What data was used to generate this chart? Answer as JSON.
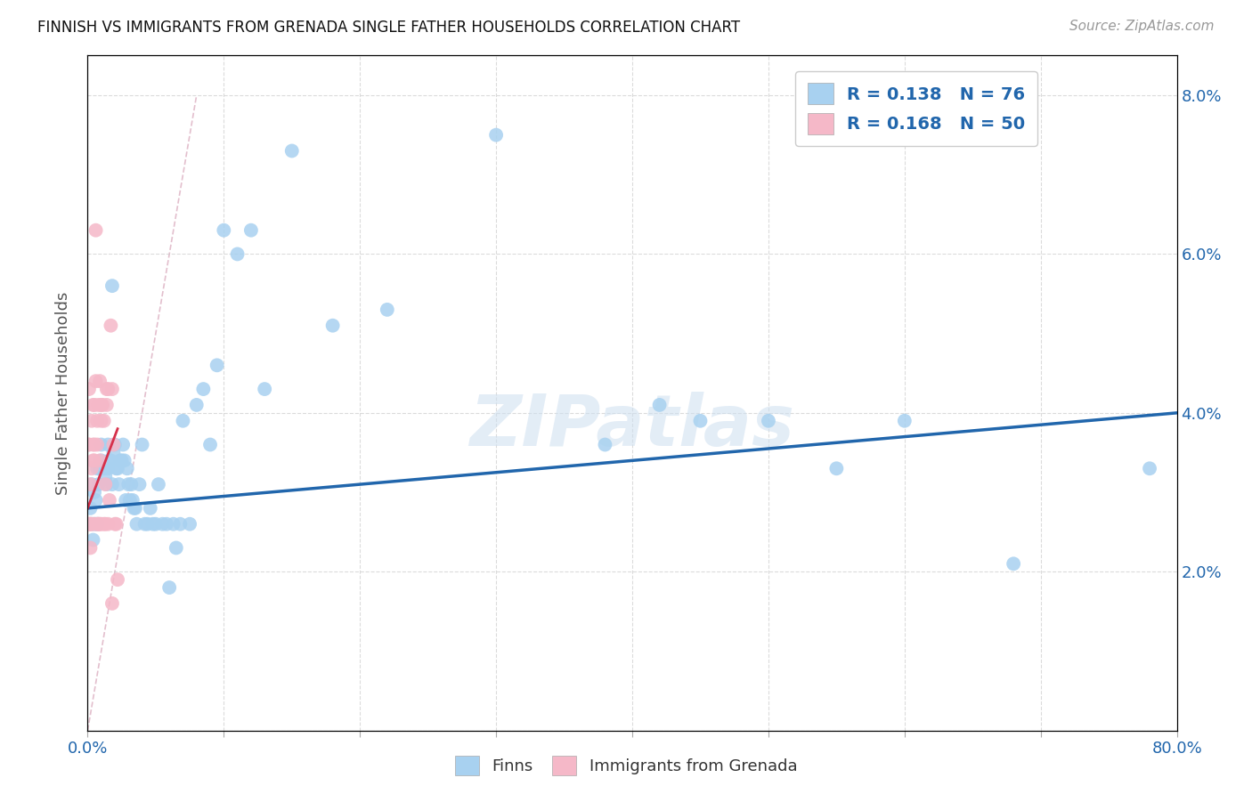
{
  "title": "FINNISH VS IMMIGRANTS FROM GRENADA SINGLE FATHER HOUSEHOLDS CORRELATION CHART",
  "source": "Source: ZipAtlas.com",
  "ylabel": "Single Father Households",
  "finns_R": 0.138,
  "finns_N": 76,
  "grenada_R": 0.168,
  "grenada_N": 50,
  "finns_color": "#a8d1f0",
  "grenada_color": "#f5b8c8",
  "finns_line_color": "#2166ac",
  "grenada_line_color": "#d6304a",
  "diagonal_color": "#e0b8c8",
  "legend_text_color": "#2166ac",
  "watermark_color": "#cddff0",
  "xlim": [
    0.0,
    0.8
  ],
  "ylim": [
    0.0,
    0.085
  ],
  "x_ticks": [
    0.0,
    0.1,
    0.2,
    0.3,
    0.4,
    0.5,
    0.6,
    0.7,
    0.8
  ],
  "y_ticks": [
    0.0,
    0.02,
    0.04,
    0.06,
    0.08
  ],
  "y_tick_labels": [
    "",
    "2.0%",
    "4.0%",
    "6.0%",
    "8.0%"
  ],
  "finns_x": [
    0.002,
    0.003,
    0.003,
    0.004,
    0.005,
    0.005,
    0.006,
    0.007,
    0.007,
    0.008,
    0.009,
    0.01,
    0.01,
    0.012,
    0.013,
    0.014,
    0.015,
    0.015,
    0.016,
    0.017,
    0.018,
    0.018,
    0.019,
    0.02,
    0.021,
    0.022,
    0.023,
    0.024,
    0.025,
    0.026,
    0.027,
    0.028,
    0.029,
    0.03,
    0.031,
    0.032,
    0.033,
    0.034,
    0.035,
    0.036,
    0.038,
    0.04,
    0.042,
    0.044,
    0.046,
    0.048,
    0.05,
    0.052,
    0.055,
    0.058,
    0.06,
    0.063,
    0.065,
    0.068,
    0.07,
    0.075,
    0.08,
    0.085,
    0.09,
    0.095,
    0.1,
    0.11,
    0.12,
    0.13,
    0.15,
    0.18,
    0.22,
    0.3,
    0.38,
    0.42,
    0.45,
    0.5,
    0.55,
    0.6,
    0.68,
    0.78
  ],
  "finns_y": [
    0.028,
    0.026,
    0.031,
    0.024,
    0.026,
    0.03,
    0.029,
    0.026,
    0.033,
    0.031,
    0.033,
    0.036,
    0.034,
    0.033,
    0.032,
    0.031,
    0.033,
    0.036,
    0.034,
    0.034,
    0.056,
    0.031,
    0.035,
    0.036,
    0.033,
    0.033,
    0.031,
    0.034,
    0.034,
    0.036,
    0.034,
    0.029,
    0.033,
    0.031,
    0.029,
    0.031,
    0.029,
    0.028,
    0.028,
    0.026,
    0.031,
    0.036,
    0.026,
    0.026,
    0.028,
    0.026,
    0.026,
    0.031,
    0.026,
    0.026,
    0.018,
    0.026,
    0.023,
    0.026,
    0.039,
    0.026,
    0.041,
    0.043,
    0.036,
    0.046,
    0.063,
    0.06,
    0.063,
    0.043,
    0.073,
    0.051,
    0.053,
    0.075,
    0.036,
    0.041,
    0.039,
    0.039,
    0.033,
    0.039,
    0.021,
    0.033
  ],
  "grenada_x": [
    0.0005,
    0.001,
    0.001,
    0.001,
    0.001,
    0.002,
    0.002,
    0.002,
    0.002,
    0.003,
    0.003,
    0.003,
    0.004,
    0.004,
    0.004,
    0.005,
    0.005,
    0.005,
    0.005,
    0.006,
    0.006,
    0.007,
    0.007,
    0.007,
    0.008,
    0.008,
    0.008,
    0.009,
    0.009,
    0.009,
    0.01,
    0.01,
    0.01,
    0.011,
    0.012,
    0.012,
    0.013,
    0.013,
    0.014,
    0.014,
    0.015,
    0.015,
    0.016,
    0.017,
    0.018,
    0.018,
    0.019,
    0.02,
    0.021,
    0.022
  ],
  "grenada_y": [
    0.036,
    0.036,
    0.026,
    0.043,
    0.026,
    0.026,
    0.023,
    0.031,
    0.026,
    0.026,
    0.033,
    0.039,
    0.034,
    0.036,
    0.041,
    0.036,
    0.034,
    0.041,
    0.026,
    0.044,
    0.063,
    0.036,
    0.039,
    0.026,
    0.026,
    0.041,
    0.026,
    0.026,
    0.034,
    0.044,
    0.041,
    0.039,
    0.026,
    0.041,
    0.026,
    0.039,
    0.026,
    0.031,
    0.043,
    0.041,
    0.026,
    0.043,
    0.029,
    0.051,
    0.043,
    0.016,
    0.036,
    0.026,
    0.026,
    0.019
  ],
  "finns_line_x": [
    0.0,
    0.8
  ],
  "finns_line_y": [
    0.028,
    0.04
  ],
  "grenada_line_x": [
    0.0,
    0.022
  ],
  "grenada_line_y": [
    0.028,
    0.038
  ]
}
